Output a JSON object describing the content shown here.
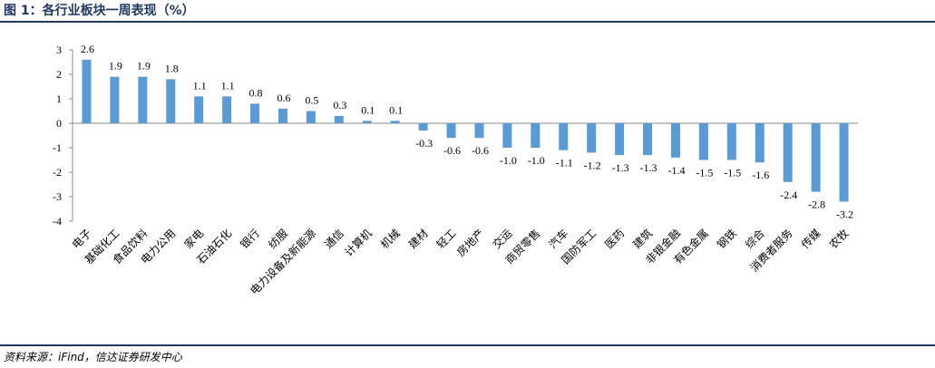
{
  "chart_data": {
    "type": "bar",
    "title": "图 1：各行业板块一周表现（%）",
    "source": "资料来源：iFind，信达证券研发中心",
    "categories": [
      "电子",
      "基础化工",
      "食品饮料",
      "电力公用",
      "家电",
      "石油石化",
      "银行",
      "纺服",
      "电力设备及新能源",
      "通信",
      "计算机",
      "机械",
      "建材",
      "轻工",
      "房地产",
      "交运",
      "商贸零售",
      "汽车",
      "国防军工",
      "医药",
      "建筑",
      "非银金融",
      "有色金属",
      "钢铁",
      "综合",
      "消费者服务",
      "传媒",
      "农牧"
    ],
    "values": [
      2.6,
      1.9,
      1.9,
      1.8,
      1.1,
      1.1,
      0.8,
      0.6,
      0.5,
      0.3,
      0.1,
      0.1,
      -0.3,
      -0.6,
      -0.6,
      -1.0,
      -1.0,
      -1.1,
      -1.2,
      -1.3,
      -1.3,
      -1.4,
      -1.5,
      -1.5,
      -1.6,
      -2.4,
      -2.8,
      -3.2
    ],
    "value_labels": [
      "2.6",
      "1.9",
      "1.9",
      "1.8",
      "1.1",
      "1.1",
      "0.8",
      "0.6",
      "0.5",
      "0.3",
      "0.1",
      "0.1",
      "-0.3",
      "-0.6",
      "-0.6",
      "-1.0",
      "-1.0",
      "-1.1",
      "-1.2",
      "-1.3",
      "-1.3",
      "-1.4",
      "-1.5",
      "-1.5",
      "-1.6",
      "-2.4",
      "-2.8",
      "-3.2"
    ],
    "color": "#5b9bd5",
    "ylim": [
      -4,
      3
    ],
    "yticks": [
      3,
      2,
      1,
      0,
      -1,
      -2,
      -3,
      -4
    ]
  }
}
